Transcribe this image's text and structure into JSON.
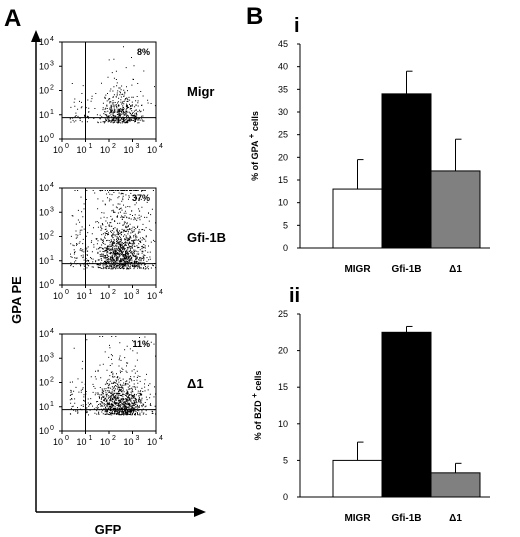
{
  "panel_a": {
    "label": "A",
    "ylabel": "GPA PE",
    "xlabel": "GFP",
    "log_tick_labels": [
      "10^0",
      "10^1",
      "10^2",
      "10^3",
      "10^4"
    ],
    "plots": [
      {
        "name": "Migr",
        "percent": "8%"
      },
      {
        "name": "Gfi-1B",
        "percent": "37%"
      },
      {
        "name": "Δ1",
        "percent": "11%"
      }
    ]
  },
  "panel_b": {
    "label": "B"
  },
  "chart_data": [
    {
      "type": "bar",
      "panel": "i",
      "ylabel_main": "% of GPA",
      "ylabel_sup": "+",
      "ylabel_tail": "cells",
      "categories": [
        "MIGR",
        "Gfi-1B",
        "Δ1"
      ],
      "values": [
        13,
        34,
        17
      ],
      "errors": [
        6.5,
        5,
        7
      ],
      "colors": [
        "#ffffff",
        "#000000",
        "#808080"
      ],
      "ylim": [
        0,
        45
      ],
      "yticks": [
        0,
        5,
        10,
        15,
        20,
        25,
        30,
        35,
        40,
        45
      ]
    },
    {
      "type": "bar",
      "panel": "ii",
      "ylabel_main": "% of BZD",
      "ylabel_sup": "+",
      "ylabel_tail": "cells",
      "categories": [
        "MIGR",
        "Gfi-1B",
        "Δ1"
      ],
      "values": [
        5,
        22.5,
        3.3
      ],
      "errors": [
        2.5,
        0.8,
        1.3
      ],
      "colors": [
        "#ffffff",
        "#000000",
        "#808080"
      ],
      "ylim": [
        0,
        25
      ],
      "yticks": [
        0,
        5,
        10,
        15,
        20,
        25
      ]
    }
  ]
}
